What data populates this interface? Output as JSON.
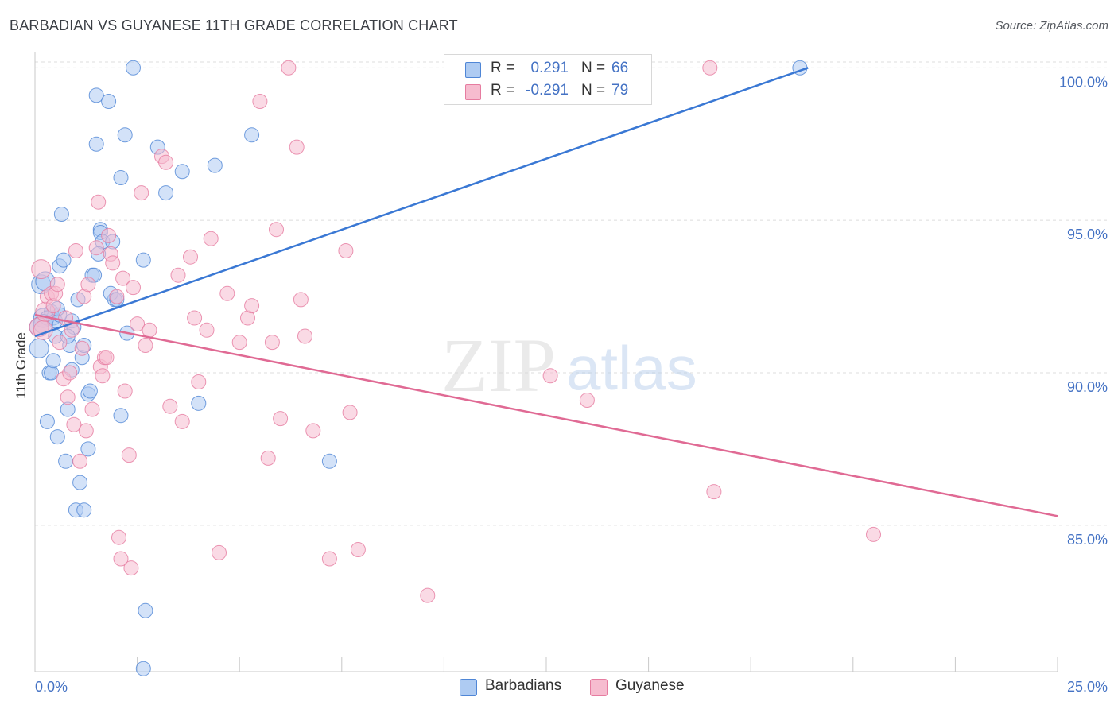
{
  "title": "BARBADIAN VS GUYANESE 11TH GRADE CORRELATION CHART",
  "source": "Source: ZipAtlas.com",
  "watermark": {
    "zip": "ZIP",
    "atlas": "atlas"
  },
  "legend": {
    "rows": [
      {
        "r_label": "R =",
        "r_value": "0.291",
        "n_label": "N =",
        "n_value": "66",
        "color": "#4f86d6",
        "fill": "#aecbf2"
      },
      {
        "r_label": "R =",
        "r_value": "-0.291",
        "n_label": "N =",
        "n_value": "79",
        "color": "#e67ca0",
        "fill": "#f6bccf"
      }
    ]
  },
  "bottom_legend": [
    {
      "label": "Barbadians",
      "color": "#4f86d6",
      "fill": "#aecbf2"
    },
    {
      "label": "Guyanese",
      "color": "#e67ca0",
      "fill": "#f6bccf"
    }
  ],
  "chart_data": {
    "type": "scatter",
    "title": "BARBADIAN VS GUYANESE 11TH GRADE CORRELATION CHART",
    "xlabel": "",
    "ylabel": "11th Grade",
    "xlim": [
      0,
      25
    ],
    "ylim": [
      80.2,
      100.4
    ],
    "x_tick_labels": [
      "0.0%",
      "25.0%"
    ],
    "y_ticks": [
      85,
      90,
      95,
      100
    ],
    "y_tick_labels": [
      "85.0%",
      "90.0%",
      "95.0%",
      "100.0%"
    ],
    "grid": true,
    "legend_position": "top-center",
    "series": [
      {
        "name": "Barbadians",
        "color": "#4f86d6",
        "fill": "#aecbf2",
        "trend": {
          "x": [
            0,
            18.9
          ],
          "y": [
            91.2,
            100.0
          ]
        },
        "points": [
          [
            0.1,
            90.8
          ],
          [
            0.1,
            91.5
          ],
          [
            0.15,
            92.9
          ],
          [
            0.2,
            91.8
          ],
          [
            0.25,
            93.0
          ],
          [
            0.3,
            88.4
          ],
          [
            0.35,
            90.0
          ],
          [
            0.4,
            90.0
          ],
          [
            0.4,
            92.0
          ],
          [
            0.45,
            91.8
          ],
          [
            0.45,
            90.4
          ],
          [
            0.5,
            91.2
          ],
          [
            0.55,
            87.9
          ],
          [
            0.6,
            93.5
          ],
          [
            0.65,
            95.2
          ],
          [
            0.7,
            93.7
          ],
          [
            0.75,
            87.1
          ],
          [
            0.8,
            88.8
          ],
          [
            0.85,
            90.9
          ],
          [
            0.9,
            91.7
          ],
          [
            0.95,
            91.5
          ],
          [
            1.0,
            85.5
          ],
          [
            1.05,
            92.4
          ],
          [
            1.1,
            86.4
          ],
          [
            1.15,
            90.5
          ],
          [
            1.2,
            90.9
          ],
          [
            1.2,
            85.5
          ],
          [
            1.3,
            89.3
          ],
          [
            1.3,
            87.5
          ],
          [
            1.35,
            89.4
          ],
          [
            1.4,
            93.2
          ],
          [
            1.45,
            93.2
          ],
          [
            1.5,
            99.1
          ],
          [
            1.5,
            97.5
          ],
          [
            1.6,
            94.7
          ],
          [
            1.6,
            94.6
          ],
          [
            1.65,
            94.3
          ],
          [
            1.55,
            93.9
          ],
          [
            1.8,
            98.9
          ],
          [
            1.9,
            94.3
          ],
          [
            1.95,
            92.4
          ],
          [
            1.85,
            92.6
          ],
          [
            2.0,
            92.4
          ],
          [
            2.1,
            96.4
          ],
          [
            2.1,
            88.6
          ],
          [
            2.2,
            97.8
          ],
          [
            2.25,
            91.3
          ],
          [
            2.4,
            100.0
          ],
          [
            2.65,
            93.7
          ],
          [
            2.65,
            80.3
          ],
          [
            2.7,
            82.2
          ],
          [
            3.0,
            97.4
          ],
          [
            3.2,
            95.9
          ],
          [
            3.6,
            96.6
          ],
          [
            4.0,
            89.0
          ],
          [
            4.4,
            96.8
          ],
          [
            5.3,
            97.8
          ],
          [
            7.2,
            87.1
          ],
          [
            18.7,
            100.0
          ],
          [
            0.3,
            91.8
          ],
          [
            0.5,
            91.7
          ],
          [
            0.6,
            91.9
          ],
          [
            0.8,
            91.2
          ],
          [
            0.9,
            90.1
          ],
          [
            0.2,
            91.6
          ],
          [
            0.55,
            92.1
          ]
        ]
      },
      {
        "name": "Guyanese",
        "color": "#e67ca0",
        "fill": "#f6bccf",
        "trend": {
          "x": [
            0,
            25
          ],
          "y": [
            91.9,
            85.3
          ]
        },
        "points": [
          [
            0.1,
            91.5
          ],
          [
            0.15,
            93.4
          ],
          [
            0.2,
            91.4
          ],
          [
            0.25,
            92.0
          ],
          [
            0.3,
            92.5
          ],
          [
            0.4,
            92.6
          ],
          [
            0.45,
            92.2
          ],
          [
            0.5,
            92.6
          ],
          [
            0.55,
            92.9
          ],
          [
            0.6,
            91.0
          ],
          [
            0.7,
            89.8
          ],
          [
            0.75,
            91.8
          ],
          [
            0.8,
            89.2
          ],
          [
            0.85,
            90.0
          ],
          [
            0.9,
            91.4
          ],
          [
            0.95,
            88.3
          ],
          [
            1.0,
            94.0
          ],
          [
            1.1,
            87.1
          ],
          [
            1.15,
            90.8
          ],
          [
            1.2,
            92.5
          ],
          [
            1.25,
            88.1
          ],
          [
            1.3,
            92.9
          ],
          [
            1.4,
            88.8
          ],
          [
            1.5,
            94.1
          ],
          [
            1.55,
            95.6
          ],
          [
            1.6,
            90.2
          ],
          [
            1.65,
            89.9
          ],
          [
            1.7,
            90.5
          ],
          [
            1.75,
            90.5
          ],
          [
            1.8,
            94.5
          ],
          [
            1.85,
            93.9
          ],
          [
            1.9,
            93.6
          ],
          [
            2.0,
            92.5
          ],
          [
            2.05,
            84.6
          ],
          [
            2.1,
            83.9
          ],
          [
            2.15,
            93.1
          ],
          [
            2.2,
            89.4
          ],
          [
            2.3,
            87.3
          ],
          [
            2.35,
            83.6
          ],
          [
            2.4,
            92.8
          ],
          [
            2.5,
            91.6
          ],
          [
            2.6,
            95.9
          ],
          [
            2.7,
            90.9
          ],
          [
            2.8,
            91.4
          ],
          [
            3.1,
            97.1
          ],
          [
            3.2,
            96.9
          ],
          [
            3.3,
            88.9
          ],
          [
            3.5,
            93.2
          ],
          [
            3.6,
            88.4
          ],
          [
            3.8,
            93.8
          ],
          [
            3.9,
            91.8
          ],
          [
            4.0,
            89.7
          ],
          [
            4.2,
            91.4
          ],
          [
            4.3,
            94.4
          ],
          [
            4.5,
            84.1
          ],
          [
            4.7,
            92.6
          ],
          [
            5.0,
            91.0
          ],
          [
            5.2,
            91.8
          ],
          [
            5.3,
            92.2
          ],
          [
            5.5,
            98.9
          ],
          [
            5.7,
            87.2
          ],
          [
            5.8,
            91.0
          ],
          [
            5.9,
            94.7
          ],
          [
            6.0,
            88.5
          ],
          [
            6.2,
            100.0
          ],
          [
            6.4,
            97.4
          ],
          [
            6.5,
            92.4
          ],
          [
            6.6,
            91.2
          ],
          [
            6.8,
            88.1
          ],
          [
            7.2,
            83.9
          ],
          [
            7.6,
            94.0
          ],
          [
            7.7,
            88.7
          ],
          [
            7.9,
            84.2
          ],
          [
            9.6,
            82.7
          ],
          [
            12.6,
            89.9
          ],
          [
            13.5,
            89.1
          ],
          [
            16.6,
            86.1
          ],
          [
            16.5,
            100.0
          ],
          [
            20.5,
            84.7
          ]
        ]
      }
    ]
  }
}
